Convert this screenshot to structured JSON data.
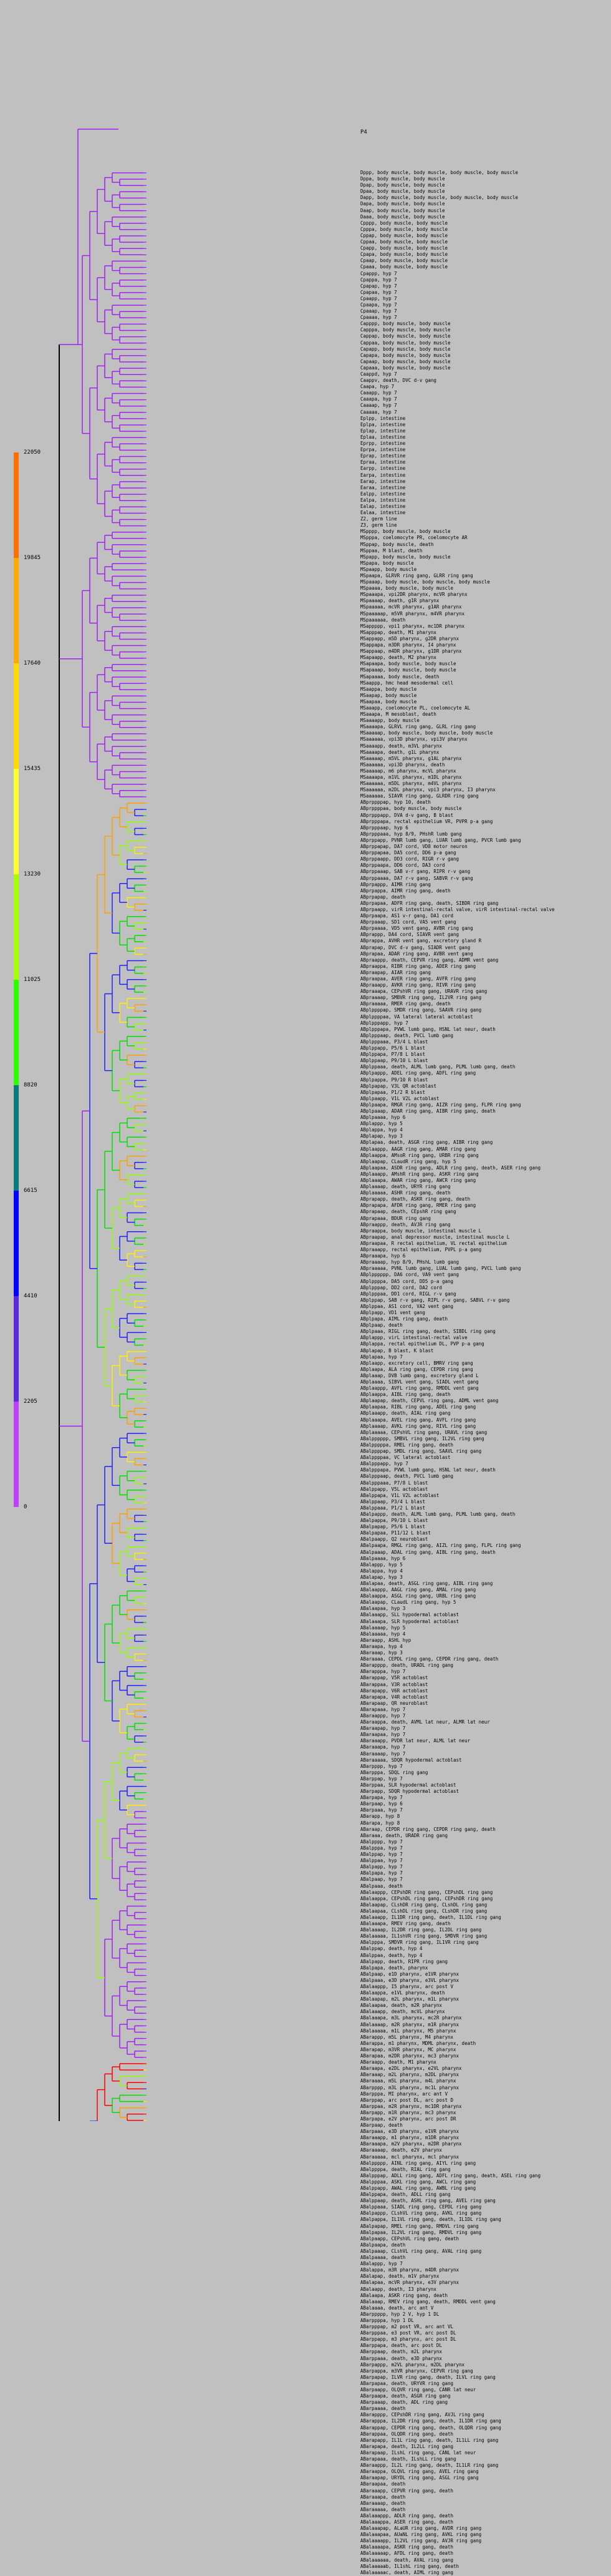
{
  "root_label": "P4",
  "scale": {
    "ticks": [
      "22050",
      "19845",
      "17640",
      "15435",
      "13230",
      "11025",
      "8820",
      "6615",
      "4410",
      "2205",
      "0"
    ],
    "colors": [
      "#ff6f00",
      "#ffaa00",
      "#ffd800",
      "#ffff33",
      "#a8ff00",
      "#2bff00",
      "#0a7a7a",
      "#0000ff",
      "#5a2bd8",
      "#bf3fff"
    ]
  },
  "tree_colors": {
    "purple": "#a020f0",
    "blue": "#2020ff",
    "green": "#00e000",
    "lime": "#90ff00",
    "yellow": "#ffee00",
    "orange": "#ffa000",
    "red": "#ff0000",
    "black": "#000000"
  },
  "leaves": [
    "Dppp, body muscle, body muscle, body muscle, body muscle",
    "Dppa, body muscle, body muscle",
    "Dpap, body muscle, body muscle",
    "Dpaa, body muscle, body muscle",
    "Dapp, body muscle, body muscle, body muscle, body muscle",
    "Dapa, body muscle, body muscle",
    "Daap, body muscle, body muscle",
    "Daaa, body muscle, body muscle",
    "Cpppp, body muscle, body muscle",
    "Cpppa, body muscle, body muscle",
    "Cppap, body muscle, body muscle",
    "Cppaa, body muscle, body muscle",
    "Cpapp, body muscle, body muscle",
    "Cpapa, body muscle, body muscle",
    "Cpaap, body muscle, body muscle",
    "Cpaaa, body muscle, body muscle",
    "Cpappp, hyp 7",
    "Cpappa, hyp 7",
    "Cpapap, hyp 7",
    "Cpapaa, hyp 7",
    "Cpaapp, hyp 7",
    "Cpaapa, hyp 7",
    "Cpaaap, hyp 7",
    "Cpaaaa, hyp 7",
    "Capppp, body muscle, body muscle",
    "Capppa, body muscle, body muscle",
    "Cappap, body muscle, body muscle",
    "Cappaa, body muscle, body muscle",
    "Capapp, body muscle, body muscle",
    "Capapa, body muscle, body muscle",
    "Capaap, body muscle, body muscle",
    "Capaaa, body muscle, body muscle",
    "Caappd, hyp 7",
    "Caappv, death, DVC d-v gang",
    "Caapa, hyp 7",
    "Caaapp, hyp 7",
    "Caaapa, hyp 7",
    "Caaaap, hyp 7",
    "Caaaaa, hyp 7",
    "Eplpp, intestine",
    "Eplpa, intestine",
    "Eplap, intestine",
    "Eplaa, intestine",
    "Eprpp, intestine",
    "Eprpa, intestine",
    "Eprap, intestine",
    "Epraa, intestine",
    "Earpp, intestine",
    "Earpa, intestine",
    "Earap, intestine",
    "Earaa, intestine",
    "Ealpp, intestine",
    "Ealpa, intestine",
    "Ealap, intestine",
    "Ealaa, intestine",
    "Z2, germ line",
    "Z3, germ line",
    "MSpppp, body muscle, body muscle",
    "MSpppa, coelomocyte PR, coelomocyte AR",
    "MSppap, body muscle, death",
    "MSppaa, M blast, death",
    "MSpapp, body muscle, body muscle",
    "MSpapa, body muscle",
    "MSpaapp, body muscle",
    "MSpaapa, GLRVR ring gang, GLRR ring gang",
    "MSpaaap, body muscle, body muscle, body muscle",
    "MSpaaaa, body muscle, body muscle",
    "MSpaaapa, vpi2DR pharynx, mcVR pharynx",
    "MSpaaaap, death, g1R pharynx",
    "MSpaaaaa, mcVR pharynx, g1AR pharynx",
    "MSpaaaaap, m5VR pharynx, m4VR pharynx",
    "MSpaaaaaa, death",
    "MSappppp, vpi1 pharynx, mc1DR pharynx",
    "MSapppap, death, M1 pharynx",
    "MSappapp, m5D pharynx, g2DR pharynx",
    "MSappapa, m3DR pharynx, I4 pharynx",
    "MSappaap, m4DR pharynx, g1DR pharynx",
    "MSapaapp, death, M2 pharynx",
    "MSapaapa, body muscle, body muscle",
    "MSapaaap, body muscle, body muscle",
    "MSapaaaa, body muscle, death",
    "MSaappp, hmc head mesodermal cell",
    "MSaappa, body muscle",
    "MSaapap, body muscle",
    "MSaapaa, body muscle",
    "MSaaapp, coelomocyte PL, coelomocyte AL",
    "MSaaapa, M mesoblast, death",
    "MSaaaapp, body muscle",
    "MSaaaapa, GLRVL ring gang, GLRL ring gang",
    "MSaaaaap, body muscle, body muscle, body muscle",
    "MSaaaaaa, vpi3D pharynx, vpi3V pharynx",
    "MSaaaapp, death, m3VL pharynx",
    "MSaaaapa, death, g1L pharynx",
    "MSaaaaap, m5VL pharynx, g1AL pharynx",
    "MSaaaaaa, vpi3D pharynx, death",
    "MSaaaaap, m6 pharynx, mcVL pharynx",
    "MSaaaapa, m1VL pharynx, m1DL pharynx",
    "MSaaaaaa, m5DL pharynx, m4VL pharynx",
    "MSaaaaaa, m2DL pharynx, vpi3 pharynx, I3 pharynx",
    "MSaaaaaa, SIAVR ring gang, GLRDR ring gang",
    "ABprppppap, hyp 10, death",
    "ABprppppaa, body muscle, body muscle",
    "ABprpppapp, DVA d-v gang, B blast",
    "ABprpppapa, rectal epithelium VR, PVPR p-a gang",
    "ABprpppaap, hyp 6",
    "ABprpppaaa, hyp 8/9, PHshR lumb gang",
    "ABprppapp, PVNR lumb gang, LUAR lumb gang, PVCR lumb gang",
    "ABprppapap, DA7 cord, VD8 motor neuron",
    "ABprppapaa, DA5 cord, DD6 p-a gang",
    "ABprppaapp, DD3 cord, RIGR r-v gang",
    "ABprppaapa, DD6 cord, DA3 cord",
    "ABprppaaap, SAB v-r gang, RIPR r-v gang",
    "ABprppaaaa, DA7 r-v gang, SABVR r-v gang",
    "ABprpappp, AIMR ring gang",
    "ABprpappa, AIMR ring gang, death",
    "ABprpapap, death",
    "ABprpapaa, ADFR ring gang, death, SIBDR ring gang",
    "ABprpaapp, virR intestinal-rectal valve, virR intestinal-rectal valve",
    "ABprpaapa, AS1 v-r gang, DA1 cord",
    "ABprpaaap, SD1 cord, VA5 vent gang",
    "ABprpaaaa, VD5 vent gang, AVBR ring gang",
    "ABprappp, DA4 cord, SIAVR vent gang",
    "ABprappa, AVHR vent gang, excretory gland R",
    "ABprapap, DVC d-v gang, SIADR vent gang",
    "ABprapaa, ADAR ring gang, AVBR vent gang",
    "ABpraappp, death, CEPVR ring gang, ADMR vent gang",
    "ABpraappa, RIBR ring gang, ADER ring gang",
    "ABpraapap, AIAR ring gang",
    "ABpraapaa, AVER ring gang, AVFR ring gang",
    "ABpraaapp, AVKR ring gang, RIVR ring gang",
    "ABpraaapa, CEPshVR ring gang, URAVR ring gang",
    "ABpraaaap, SMBVR ring gang, IL2VR ring gang",
    "ABpraaaaa, RMER ring gang, death",
    "ABplppppap, SMDR ring gang, SAAVR ring gang",
    "ABplppppaa, VA lateral lateral actoblast",
    "ABplpppapp, hyp 7",
    "ABplpppapa, PVWL lumb gang, HSNL lat neur, death",
    "ABplpppaap, death, PVCL lumb gang",
    "ABplpppaaa, P3/4 L blast",
    "ABplppapp, P5/6 L blast",
    "ABplppapa, P7/8 L blast",
    "ABplppaap, P9/10 L blast",
    "ABplppaaa, death, ALML lumb gang, PLML lumb gang, death",
    "ABplpappp, ADEL ring gang, ADFL ring gang",
    "ABplpappa, P9/10 R blast",
    "ABplpapap, V3L QR actoblast",
    "ABplpapaa, P1/2 R blast",
    "ABplpaapp, V1L V2L actoblast",
    "ABplpaapa, RMGR ring gang, AIZR ring gang, FLPR ring gang",
    "ABplpaaap, ADAR ring gang, AIBR ring gang, death",
    "ABplpaaaa, hyp 6",
    "ABplappp, hyp 5",
    "ABplappa, hyp 4",
    "ABplapap, hyp 3",
    "ABplapaa, death, ASGR ring gang, AIBR ring gang",
    "ABplaappp, AAGR ring gang, AMAR ring gang",
    "ABplaappa, AMsoR ring gang, URBR ring gang",
    "ABplaapap, CLaudR ring gang, hyp 5",
    "ABplaapaa, ASDR ring gang, ADLR ring gang, death, ASER ring gang",
    "ABplaaapp, AMshR ring gang, ASKR ring gang",
    "ABplaaapa, AWAR ring gang, AWCR ring gang",
    "ABplaaaap, death, URYR ring gang",
    "ABplaaaaa, ASHR ring gang, death",
    "ABprapapp, death, ASKR ring gang, death",
    "ABprapapa, AFDR ring gang, RMER ring gang",
    "ABprapaap, death, CEpshR ring gang",
    "ABprapaaa, BDUR ring gang",
    "ABpraappp, death, AVJR ring gang",
    "ABpraappa, body muscle, intestinal muscle L",
    "ABpraapap, anal depressor muscle, intestinal muscle L",
    "ABpraapaa, R rectal epithelium, VL rectal epithelium",
    "ABpraaapp, rectal epithelium, PVPL p-a gang",
    "ABpraaapa, hyp 6",
    "ABpraaaap, hyp 8/9, PHshL lumb gang",
    "ABpraaaaa, PVNL lumb gang, LUAL lumb gang, PVCL lumb gang",
    "ABplpppppp, DA6 cord, VA9 vent gang",
    "ABplppppa, DA5 cord, DD5 p-a gang",
    "ABplpppap, DD2 cord, DA2 cord",
    "ABplpppaa, DD1 cord, RIGL r-v gang",
    "ABplppap, SAB r-v gang, RIPL r-v gang, SABVL r-v gang",
    "ABplppaa, AS1 cord, VA2 vent gang",
    "ABplpapp, VD1 vent gang",
    "ABplpapa, AIML ring gang, death",
    "ABplpaap, death",
    "ABplpaaa, RIGL ring gang, death, SIBDL ring gang",
    "ABplappp, virL intestinal-rectal valve",
    "ABplappa, rectal epithelium DL, PVP p-a gang",
    "ABplapap, B blast, K blast",
    "ABplapaa, hyp 7",
    "ABplaapp, excretory cell, BMRV ring gang",
    "ABplaapa, ALA ring gang, CEPDR ring gang",
    "ABplaaap, DVB lumb gang, excretory gland L",
    "ABplaaaa, SIBVL vent gang, SIADL vent gang",
    "ABplaappp, AVFL ring gang, RMDDL vent gang",
    "ABplaappa, AIBL ring gang, death",
    "ABplaapap, death, CEPVL ring gang, ADML vent gang",
    "ABplaapaa, RIBL ring gang, ADEL ring gang",
    "ABplaaapp, death, AIAL ring gang",
    "ABplaaapa, AVEL ring gang, AVFL ring gang",
    "ABplaaaap, AVKL ring gang, RIVL ring gang",
    "ABplaaaaa, CEPshVL ring gang, URAVL ring gang",
    "ABalpppppp, SMBVL ring gang, IL2VL ring gang",
    "ABalpppppa, RMEL ring gang, death",
    "ABalppppap, SMDL ring gang, SAAVL ring gang",
    "ABalppppaa, VC lateral actoblast",
    "ABalpppapp, hyp 7",
    "ABalpppapa, PVWL lumb gang, HSNL lat neur, death",
    "ABalpppaap, death, PVCL lumb gang",
    "ABalpppaaa, P7/8 L blast",
    "ABalppapp, V5L actoblast",
    "ABalppapa, V1L V2L actoblast",
    "ABalppaap, P3/4 L blast",
    "ABalppaaa, P1/2 L blast",
    "ABalpappp, death, ALML lumb gang, PLML lumb gang, death",
    "ABalpappa, P9/10 L blast",
    "ABalpapap, P5/6 L blast",
    "ABalpapaa, P11/12 L blast",
    "ABalpaapp, Q2 neuroblast",
    "ABalpaapa, RMGL ring gang, AIZL ring gang, FLPL ring gang",
    "ABalpaaap, ADAL ring gang, AIBL ring gang, death",
    "ABalpaaaa, hyp 6",
    "ABalappp, hyp 5",
    "ABalappa, hyp 4",
    "ABalapap, hyp 3",
    "ABalapaa, death, ASGL ring gang, AIBL ring gang",
    "ABalaappp, AAGL ring gang, AMAL ring gang",
    "ABalaappa, ASGL ring gang, URBL ring gang",
    "ABalaapap, CLaudL ring gang, hyp 5",
    "ABalaapaa, hyp 3",
    "ABalaaapp, SLL hypodermal actoblast",
    "ABalaaapa, SLR hypodermal actoblast",
    "ABalaaaap, hyp 5",
    "ABalaaaaa, hyp 4",
    "ABaraapp, ASHL hyp",
    "ABaraapa, hyp 4",
    "ABaraaap, hyp 3",
    "ABaraaaa, CEPDL ring gang, CEPDR ring gang, death",
    "ABarapppp, death, URADL ring gang",
    "ABarapppa, hyp 7",
    "ABarappap, V5R actoblast",
    "ABarappaa, V3R actoblast",
    "ABarapapp, V6R actoblast",
    "ABarapapa, V4R actoblast",
    "ABarapaap, QR neuroblast",
    "ABarapaaa, hyp 7",
    "ABaraappp, hyp 7",
    "ABaraappa, death, AVML lat neur, ALMR lat neur",
    "ABaraapap, hyp 7",
    "ABaraapaa, hyp 7",
    "ABaraaapp, PVDR lat neur, ALML lat neur",
    "ABaraaapa, hyp 7",
    "ABaraaaap, hyp 7",
    "ABaraaaaa, SDQR hypodermal actoblast",
    "ABarpppp, hyp 7",
    "ABarpppa, SDQL ring gang",
    "ABarppap, hyp 7",
    "ABarppaa, SLR hypodermal actoblast",
    "ABarpapp, SDQR hypodermal actoblast",
    "ABarpapa, hyp 7",
    "ABarpaap, hyp 6",
    "ABarpaaa, hyp 7",
    "ABarapp, hyp 8",
    "ABarapa, hyp 8",
    "ABaraap, CEPDR ring gang, CEPDR ring gang, death",
    "ABaraaa, death, URADR ring gang",
    "ABalpppp, hyp 7",
    "ABalpppa, hyp 7",
    "ABalppap, hyp 7",
    "ABalppaa, hyp 7",
    "ABalpapp, hyp 7",
    "ABalpapa, hyp 7",
    "ABalpaap, hyp 7",
    "ABalpaaa, death",
    "ABalaappp, CEPshDR ring gang, CEPshDL ring gang",
    "ABalaappa, CEPshDL ring gang, CEPshDR ring gang",
    "ABalaapap, CLshDR ring gang, CLshDL ring gang",
    "ABalaapaa, CLshDL ring gang, CLshDR ring gang",
    "ABalaaapp, IL1DR ring gang, death, IL1DL ring gang",
    "ABalaaapa, RMEV ring gang, death",
    "ABalaaaap, IL2DR ring gang, IL2DL ring gang",
    "ABalaaaaa, IL1shVR ring gang, SMDVR ring gang",
    "ABalpppa, SMDVR ring gang, IL1VR ring gang",
    "ABalppap, death, hyp 4",
    "ABalppaa, death, hyp 4",
    "ABalpapp, death, RIPR ring gang",
    "ABalpapa, death, pharynx",
    "ABalpaap, e1D pharynx, e1VR pharynx",
    "ABalpaaa, e3D pharynx, e3VL pharynx",
    "ABalaappp, I5 pharynx, arc post V",
    "ABalaappa, e1VL pharynx, death",
    "ABalaapap, m2L pharynx, m1L pharynx",
    "ABalaapaa, death, m2R pharynx",
    "ABalaaapp, death, mcVL pharynx",
    "ABalaaapa, m3L pharynx, mc2R pharynx",
    "ABalaaaap, m2R pharynx, m1R pharynx",
    "ABalaaaaa, m1L pharynx, M5 pharynx",
    "ABarappp, m5L pharynx, M4 pharynx",
    "ABarappa, m1 pharynx, MDML pharynx, death",
    "ABarapap, m3VR pharynx, MC pharynx",
    "ABarapaa, m2DR pharynx, mc3 pharynx",
    "ABaraapp, death, M1 pharynx",
    "ABaraapa, e2DL pharynx, e2VL pharynx",
    "ABaraaap, m2L pharynx, m2DL pharynx",
    "ABaraaaa, m5L pharynx, m4L pharynx",
    "ABarpppp, m3L pharynx, mc1L pharynx",
    "ABarpppa, MI pharynx, arc ant V",
    "ABarppap, arc post DL, arc post D",
    "ABarppaa, m2R pharynx, mc1DR pharynx",
    "ABarpapp, m1R pharynx, mc3 pharynx",
    "ABarpapa, e2V pharynx, arc post DR",
    "ABarpaap, death",
    "ABarpaaa, e3D pharynx, e1VR pharynx",
    "ABaraaapp, m1 pharynx, m1DR pharynx",
    "ABaraaapa, m2V pharynx, m2DR pharynx",
    "ABaraaaap, death, e2V pharynx",
    "ABaraaaaa, mcl pharynx, mcl pharynx",
    "ABalppppp, AINL ring gang, AIYL ring gang",
    "ABalppppa, death, RIAL ring gang",
    "ABalpppap, ADLL ring gang, ADFL ring gang, death, ASEL ring gang",
    "ABalpppaa, ASKL ring gang, AWCL ring gang",
    "ABalppapp, AWAL ring gang, AWBL ring gang",
    "ABalppapa, death, ADLL ring gang",
    "ABalppaap, death, ASHL ring gang, AVEL ring gang",
    "ABalppaaa, SIADL ring gang, CEPDL ring gang",
    "ABalpappp, CLshVL ring gang, AVKL ring gang",
    "ABalpappa, IL1VL ring gang, death, IL1DL ring gang",
    "ABalpapap, RMEL ring gang, RMDVL ring gang",
    "ABalpapaa, IL2VL ring gang, RMDVL ring gang",
    "ABalpaapp, CEPshVL ring gang, death",
    "ABalpaapa, death",
    "ABalpaaap, CLshVL ring gang, AVAL ring gang",
    "ABalpaaaa, death",
    "ABalappp, hyp 7",
    "ABalappa, m3R pharynx, m4DR pharynx",
    "ABalapap, death, m1V pharynx",
    "ABalapaa, mcVR pharynx, e3V pharynx",
    "ABalaapp, death, I3 pharynx",
    "ABalaapa, ASKR ring gang, death",
    "ABalaaap, RMEV ring gang, death, RMDDL vent gang",
    "ABalaaaa, death, arc ant V",
    "ABarppppp, hyp 2 V, hyp 1 DL",
    "ABarppppa, hyp 1 DL",
    "ABarpppap, m2 post VR, arc ant VL",
    "ABarpppaa, e3 post VR, arc post DL",
    "ABarppapp, m3 pharynx, arc post DL",
    "ABarppapa, death, arc post DL",
    "ABarppaap, death, m2L pharynx",
    "ABarppaaa, death, e3D pharynx",
    "ABarpappp, m2VL pharynx, m2DL pharynx",
    "ABarpappa, m3VR pharynx, CEPVR ring gang",
    "ABarpapap, ILVR ring gang, death, ILVL ring gang",
    "ABarpapaa, death, URYVR ring gang",
    "ABarpaapp, OLQVR ring gang, CANR lat neur",
    "ABarpaapa, death, ASGR ring gang",
    "ABarpaaap, death, ADL ring gang",
    "ABarpaaaa, death",
    "ABarapppp, CEPshDR ring gang, AVJL ring gang",
    "ABarapppa, IL2DR ring gang, death, IL1DR ring gang",
    "ABarappap, CEPDR ring gang, death, OLQDR ring gang",
    "ABarappaa, OLQDR ring gang, death",
    "ABarapapp, IL1L ring gang, death, IL1LL ring gang",
    "ABarapapa, death, IL2LL ring gang",
    "ABarapaap, ILshL ring gang, CANL lat neur",
    "ABarapaaa, death, ILshLL ring gang",
    "ABaraappp, IL2L ring gang, death, IL1LR ring gang",
    "ABaraappa, OLQVL ring gang, AVEL ring gang",
    "ABaraapap, URYDL ring gang, ASGL ring gang",
    "ABaraapaa, death",
    "ABaraaapp, CEPVR ring gang, death",
    "ABaraaapa, death",
    "ABaraaaap, death",
    "ABaraaaaa, death",
    "ABalaaappp, ADLR ring gang, death",
    "ABalaaappa, ASER ring gang, death",
    "ABalaaapap, ALaUR ring gang, AVDR ring gang",
    "ABalaaapaa, AUaNL ring gang, AVKL ring gang",
    "ABalaaaapp, IL2VL ring gang, AVJR ring gang",
    "ABalaaaapa, ASKR ring gang, death",
    "ABalaaaaap, AFDL ring gang, death",
    "ABalaaaaaa, death, AVAL ring gang",
    "ABalaaaaab, IL1shL ring gang, death",
    "ABalaaaaac, death, AIML ring gang"
  ]
}
